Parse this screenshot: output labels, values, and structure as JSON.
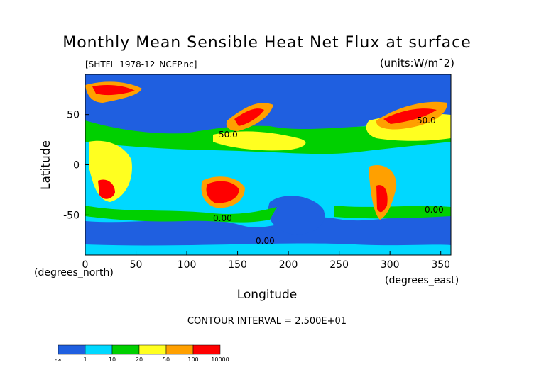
{
  "chart_data": {
    "type": "heatmap",
    "title": "Monthly Mean Sensible Heat Net Flux at surface",
    "file_label": "[SHTFL_1978-12_NCEP.nc]",
    "units_label": "(units:W/m^2)",
    "xlabel": "Longitude",
    "ylabel": "Latitude",
    "x_unit_label": "(degrees_east)",
    "y_unit_label": "(degrees_north)",
    "xlim": [
      0,
      360
    ],
    "ylim": [
      -90,
      90
    ],
    "x_ticks": [
      0,
      50,
      100,
      150,
      200,
      250,
      300,
      350
    ],
    "y_ticks": [
      50,
      0,
      -50
    ],
    "contour_interval": "CONTOUR INTERVAL = 2.500E+01",
    "contour_labels": [
      "50.0",
      "50.0",
      "0.00",
      "0.00",
      "0.00"
    ],
    "colorbar": {
      "levels": [
        "-∞",
        "1",
        "10",
        "20",
        "50",
        "100",
        "10000"
      ],
      "colors": [
        "#1f5fe0",
        "#00d8ff",
        "#00d000",
        "#ffff20",
        "#ffa000",
        "#ff0000"
      ]
    }
  }
}
